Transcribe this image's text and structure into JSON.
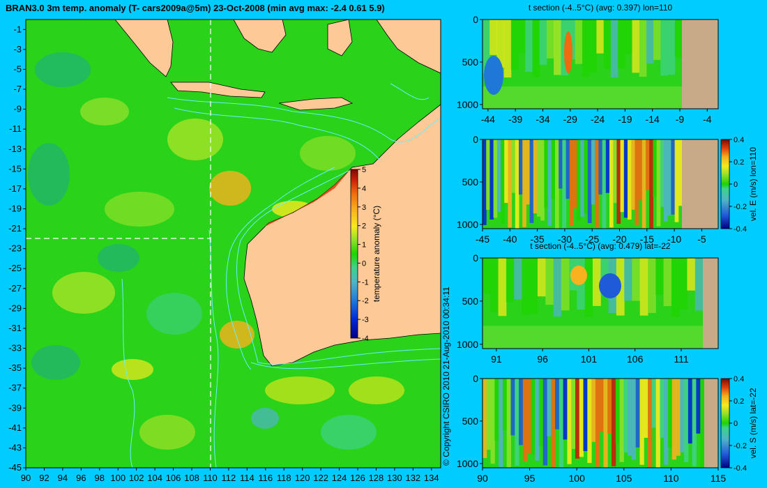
{
  "title": "BRAN3.0 3m temp. anomaly (T- cars2009a@5m) 23-Oct-2008 (min avg max: -2.4 0.61 5.9)",
  "copyright": "© Copyright CSIRO 2010   21-Aug-2010 00:34:11",
  "colors": {
    "background": "#00ccff",
    "land": "#fdc997",
    "bathy": "#66f0ff",
    "dash": "#ffffff",
    "colormap": [
      "#000080",
      "#0028d8",
      "#1f78d8",
      "#4fb4c8",
      "#3fd18a",
      "#1ed400",
      "#8ee02a",
      "#f5ea1e",
      "#f7b21e",
      "#f06a10",
      "#c81e0a",
      "#7a0a05"
    ]
  },
  "chart_data": [
    {
      "type": "heatmap",
      "title": "BRAN3.0 3m temp. anomaly (T- cars2009a@5m) 23-Oct-2008 (min avg max: -2.4 0.61 5.9)",
      "xlim": [
        90,
        135
      ],
      "ylim": [
        -45,
        0
      ],
      "xticks": [
        "90",
        "92",
        "94",
        "96",
        "98",
        "100",
        "102",
        "104",
        "106",
        "108",
        "110",
        "112",
        "114",
        "116",
        "118",
        "120",
        "122",
        "124",
        "126",
        "128",
        "130",
        "132",
        "134"
      ],
      "yticks": [
        "-1",
        "-3",
        "-5",
        "-7",
        "-9",
        "-11",
        "-13",
        "-15",
        "-17",
        "-19",
        "-21",
        "-23",
        "-25",
        "-27",
        "-29",
        "-31",
        "-33",
        "-35",
        "-37",
        "-39",
        "-41",
        "-43",
        "-45"
      ],
      "colorbar": {
        "label": "temperature anomaly (°C)",
        "range": [
          -4,
          5
        ],
        "ticks": [
          "-4",
          "-3",
          "-2",
          "-1",
          "0",
          "1",
          "2",
          "3",
          "4",
          "5"
        ]
      },
      "section_lines": {
        "lon": 110,
        "lat": -22
      }
    },
    {
      "type": "heatmap",
      "title": "t section (-4..5°C) (avg: 0.397) lon=110",
      "xlim": [
        -45,
        -2
      ],
      "ylim": [
        1050,
        0
      ],
      "xticks": [
        "-44",
        "-39",
        "-34",
        "-29",
        "-24",
        "-19",
        "-14",
        "-9",
        "-4"
      ],
      "yticks": [
        "0",
        "500",
        "1000"
      ]
    },
    {
      "type": "heatmap",
      "title": "",
      "xlim": [
        -45,
        -2
      ],
      "ylim": [
        1050,
        0
      ],
      "xticks": [
        "-45",
        "-40",
        "-35",
        "-30",
        "-25",
        "-20",
        "-15",
        "-10",
        "-5"
      ],
      "yticks": [
        "0",
        "500",
        "1000"
      ],
      "colorbar": {
        "label": "vel. E (m/s) lon=110",
        "range": [
          -0.4,
          0.4
        ],
        "ticks": [
          "-0.4",
          "-0.2",
          "0",
          "0.2",
          "0.4"
        ]
      }
    },
    {
      "type": "heatmap",
      "title": "t section (-4..5°C) (avg: 0.479) lat=-22",
      "xlim": [
        89.5,
        115
      ],
      "ylim": [
        1050,
        0
      ],
      "xticks": [
        "91",
        "96",
        "101",
        "106",
        "111"
      ],
      "yticks": [
        "0",
        "500",
        "1000"
      ]
    },
    {
      "type": "heatmap",
      "title": "",
      "xlim": [
        90,
        115
      ],
      "ylim": [
        1050,
        0
      ],
      "xticks": [
        "90",
        "95",
        "100",
        "105",
        "110",
        "115"
      ],
      "yticks": [
        "0",
        "500",
        "1000"
      ],
      "colorbar": {
        "label": "vel. S (m/s) lat=-22",
        "range": [
          -0.4,
          0.4
        ],
        "ticks": [
          "-0.4",
          "-0.2",
          "0",
          "0.2",
          "0.4"
        ]
      }
    }
  ]
}
